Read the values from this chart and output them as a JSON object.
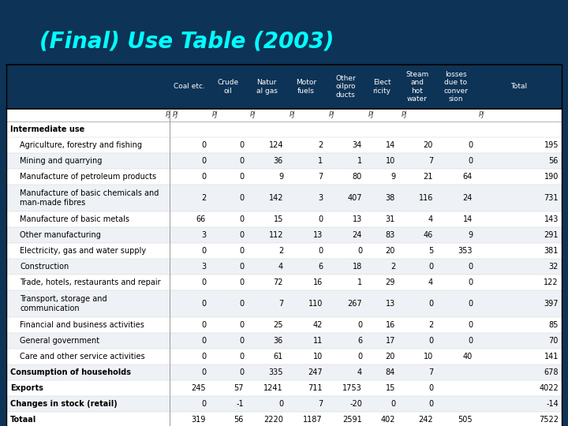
{
  "title": "(Final) Use Table (2003)",
  "title_color": "#00FFFF",
  "background_color": "#0D3356",
  "columns": [
    "Coal etc.",
    "Crude\noil",
    "Natur\nal gas",
    "Motor\nfuels",
    "Other\noilpro\nducts",
    "Elect\nricity",
    "Steam\nand\nhot\nwater",
    "losses\ndue to\nconver\nsion",
    "Total"
  ],
  "col_units": [
    "PJ",
    "PJ",
    "PJ",
    "PJ",
    "PJ",
    "PJ",
    "PJ",
    "",
    "PJ"
  ],
  "rows": [
    {
      "label": "Intermediate use",
      "bold": true,
      "indent": 0,
      "values": [
        "",
        "",
        "",
        "",
        "",
        "",
        "",
        "",
        ""
      ],
      "unit_row": true
    },
    {
      "label": "Agriculture, forestry and fishing",
      "bold": false,
      "indent": 1,
      "values": [
        "0",
        "0",
        "124",
        "2",
        "34",
        "14",
        "20",
        "0",
        "195"
      ]
    },
    {
      "label": "Mining and quarrying",
      "bold": false,
      "indent": 1,
      "values": [
        "0",
        "0",
        "36",
        "1",
        "1",
        "10",
        "7",
        "0",
        "56"
      ]
    },
    {
      "label": "Manufacture of petroleum products",
      "bold": false,
      "indent": 1,
      "values": [
        "0",
        "0",
        "9",
        "7",
        "80",
        "9",
        "21",
        "64",
        "190"
      ]
    },
    {
      "label": "Manufacture of basic chemicals and\nman-made fibres",
      "bold": false,
      "indent": 1,
      "values": [
        "2",
        "0",
        "142",
        "3",
        "407",
        "38",
        "116",
        "24",
        "731"
      ]
    },
    {
      "label": "Manufacture of basic metals",
      "bold": false,
      "indent": 1,
      "values": [
        "66",
        "0",
        "15",
        "0",
        "13",
        "31",
        "4",
        "14",
        "143"
      ]
    },
    {
      "label": "Other manufacturing",
      "bold": false,
      "indent": 1,
      "values": [
        "3",
        "0",
        "112",
        "13",
        "24",
        "83",
        "46",
        "9",
        "291"
      ]
    },
    {
      "label": "Electricity, gas and water supply",
      "bold": false,
      "indent": 1,
      "values": [
        "0",
        "0",
        "2",
        "0",
        "0",
        "20",
        "5",
        "353",
        "381"
      ]
    },
    {
      "label": "Construction",
      "bold": false,
      "indent": 1,
      "values": [
        "3",
        "0",
        "4",
        "6",
        "18",
        "2",
        "0",
        "0",
        "32"
      ]
    },
    {
      "label": "Trade, hotels, restaurants and repair",
      "bold": false,
      "indent": 1,
      "values": [
        "0",
        "0",
        "72",
        "16",
        "1",
        "29",
        "4",
        "0",
        "122"
      ]
    },
    {
      "label": "Transport, storage and\ncommunication",
      "bold": false,
      "indent": 1,
      "values": [
        "0",
        "0",
        "7",
        "110",
        "267",
        "13",
        "0",
        "0",
        "397"
      ]
    },
    {
      "label": "Financial and business activities",
      "bold": false,
      "indent": 1,
      "values": [
        "0",
        "0",
        "25",
        "42",
        "0",
        "16",
        "2",
        "0",
        "85"
      ]
    },
    {
      "label": "General government",
      "bold": false,
      "indent": 1,
      "values": [
        "0",
        "0",
        "36",
        "11",
        "6",
        "17",
        "0",
        "0",
        "70"
      ]
    },
    {
      "label": "Care and other service activities",
      "bold": false,
      "indent": 1,
      "values": [
        "0",
        "0",
        "61",
        "10",
        "0",
        "20",
        "10",
        "40",
        "141"
      ]
    },
    {
      "label": "Consumption of households",
      "bold": true,
      "indent": 0,
      "values": [
        "0",
        "0",
        "335",
        "247",
        "4",
        "84",
        "7",
        "",
        "678"
      ]
    },
    {
      "label": "Exports",
      "bold": true,
      "indent": 0,
      "values": [
        "245",
        "57",
        "1241",
        "711",
        "1753",
        "15",
        "0",
        "",
        "4022"
      ]
    },
    {
      "label": "Changes in stock (retail)",
      "bold": true,
      "indent": 0,
      "values": [
        "0",
        "-1",
        "0",
        "7",
        "-20",
        "0",
        "0",
        "",
        "-14"
      ]
    },
    {
      "label": "Totaal",
      "bold": true,
      "indent": 0,
      "values": [
        "319",
        "56",
        "2220",
        "1187",
        "2591",
        "402",
        "242",
        "505",
        "7522"
      ]
    }
  ]
}
